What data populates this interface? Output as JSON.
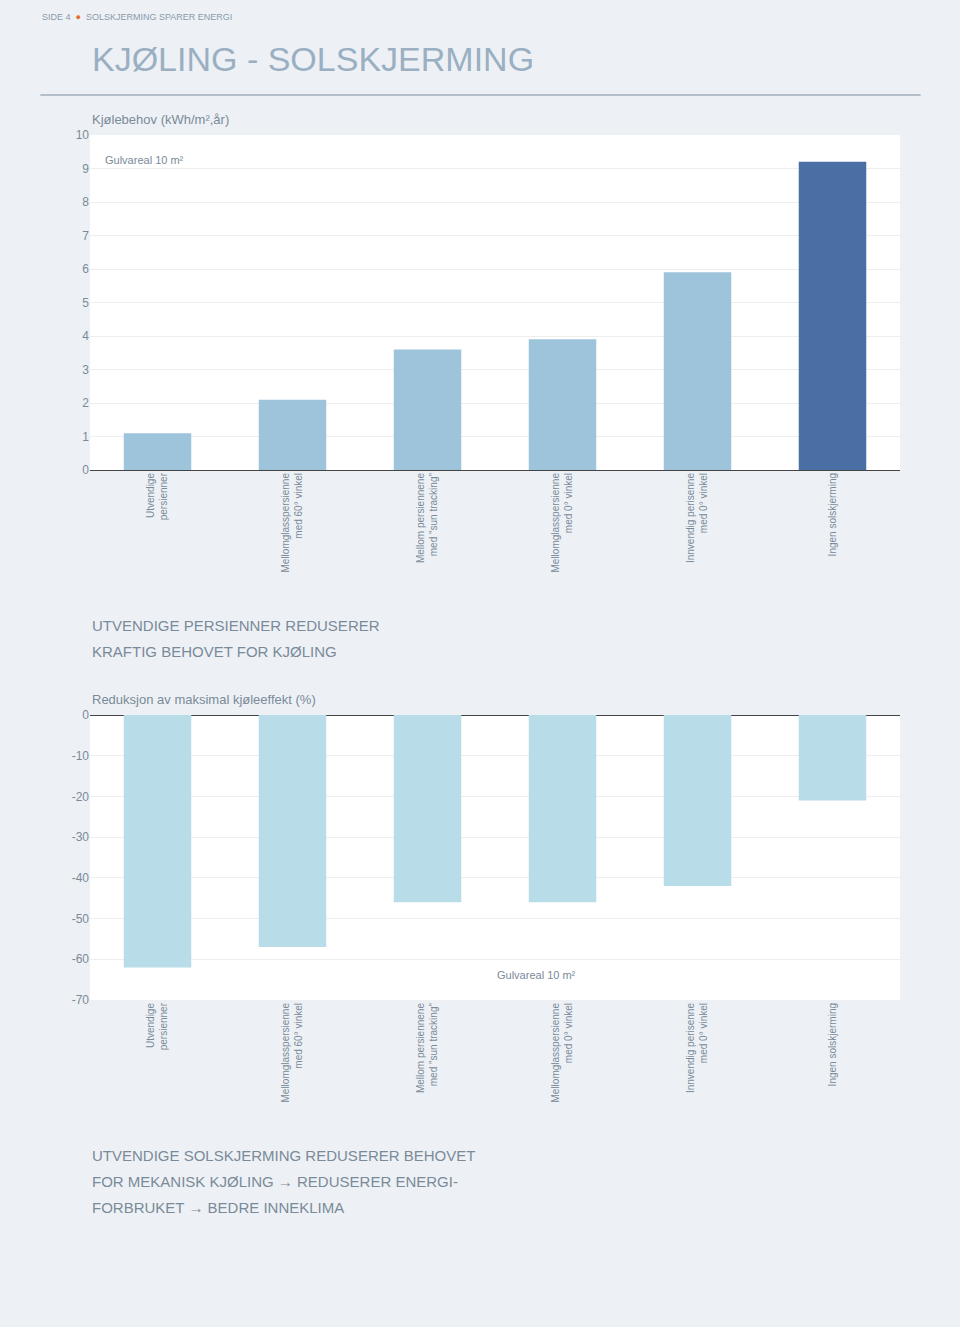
{
  "title": "KJØLING - SOLSKJERMING",
  "annotations": [
    "SIDE 4",
    "●",
    "SOLSKJERMING SPARER ENERGI"
  ],
  "chart_data": [
    {
      "type": "bar",
      "title": "Kjølebehov (kWh/m²,år)",
      "categories": [
        "Utvendige\npersienner",
        "Mellomglasspersienne\nmed 60° vinkel",
        "Mellom persiennene\nmed \"sun tracking\"",
        "Mellomglasspersienne\nmed 0° vinkel",
        "Innvendig perisenne\nmed 0° vinkel",
        "Ingen solskjerming"
      ],
      "values": [
        1.1,
        2.1,
        3.6,
        3.9,
        5.9,
        9.2
      ],
      "colors": [
        "#9dc4db",
        "#9dc4db",
        "#9dc4db",
        "#9dc4db",
        "#9dc4db",
        "#4a6fa5"
      ],
      "ylim": [
        0,
        10
      ],
      "yticks": [
        0,
        1,
        2,
        3,
        4,
        5,
        6,
        7,
        8,
        9,
        10
      ],
      "grid": true,
      "annotations": [
        "Gulvareal 10 m²"
      ],
      "caption": [
        "UTVENDIGE PERSIENNER REDUSERER",
        "KRAFTIG BEHOVET FOR KJØLING"
      ]
    },
    {
      "type": "bar",
      "title": "Reduksjon av maksimal kjøleeffekt (%)",
      "categories": [
        "Utvendige\npersienner",
        "Mellomglasspersienne\nmed 60° vinkel",
        "Mellom persiennene\nmed \"sun tracking\"",
        "Mellomglasspersienne\nmed 0° vinkel",
        "Innvendig perisenne\nmed 0° vinkel",
        "Ingen solskjerming"
      ],
      "values": [
        -62,
        -57,
        -46,
        -46,
        -42,
        -21
      ],
      "color": "#b8dce8",
      "ylim": [
        -70,
        0
      ],
      "yticks": [
        0,
        -10,
        -20,
        -30,
        -40,
        -50,
        -60,
        -70
      ],
      "grid": true,
      "annotations": [
        "Gulvareal 10 m²"
      ],
      "caption": [
        "UTVENDIGE SOLSKJERMING REDUSERER BEHOVET",
        "FOR MEKANISK KJØLING → REDUSERER ENERGI-",
        "FORBRUKET → BEDRE INNEKLIMA"
      ]
    }
  ]
}
